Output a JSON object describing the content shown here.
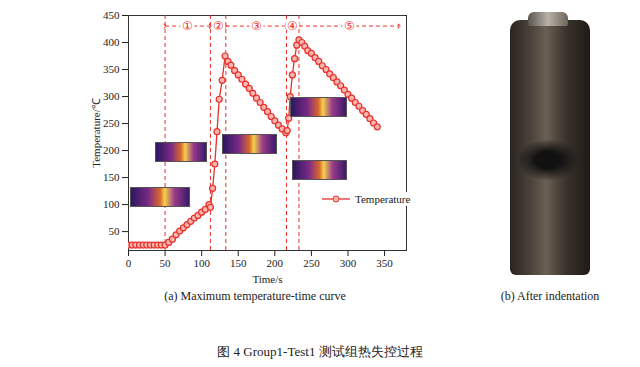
{
  "chart_data": {
    "type": "line",
    "title": "(a) Maximum temperature-time curve",
    "x_label": "Time/s",
    "y_label": "Temperature/℃",
    "xlim": [
      0,
      380
    ],
    "xticks": [
      0,
      50,
      100,
      150,
      200,
      250,
      300,
      350
    ],
    "ylim": [
      15,
      450
    ],
    "yticks": [
      50,
      100,
      150,
      200,
      250,
      300,
      350,
      400,
      450
    ],
    "x": [
      0,
      5,
      10,
      15,
      20,
      25,
      30,
      35,
      40,
      45,
      50,
      55,
      60,
      65,
      70,
      75,
      80,
      85,
      90,
      95,
      100,
      105,
      110,
      112,
      115,
      118,
      121,
      124,
      128,
      132,
      136,
      140,
      145,
      150,
      155,
      160,
      165,
      170,
      175,
      180,
      185,
      190,
      195,
      200,
      205,
      210,
      215,
      217,
      219,
      221,
      224,
      227,
      230,
      233,
      237,
      241,
      245,
      250,
      255,
      260,
      265,
      270,
      275,
      280,
      285,
      290,
      295,
      300,
      305,
      310,
      315,
      320,
      325,
      330,
      335,
      340
    ],
    "series": [
      {
        "name": "Temperature",
        "color": "#e8302a",
        "marker": "circle",
        "line_style": "solid",
        "values": [
          25,
          25,
          25,
          25,
          25,
          25,
          25,
          25,
          25,
          25,
          25,
          30,
          36,
          44,
          51,
          57,
          63,
          69,
          75,
          80,
          86,
          91,
          100,
          95,
          130,
          175,
          235,
          295,
          330,
          375,
          365,
          358,
          348,
          340,
          332,
          323,
          315,
          306,
          297,
          289,
          280,
          272,
          263,
          255,
          247,
          240,
          233,
          237,
          260,
          300,
          340,
          370,
          395,
          405,
          400,
          393,
          385,
          380,
          372,
          365,
          357,
          350,
          342,
          335,
          327,
          320,
          312,
          304,
          297,
          289,
          282,
          274,
          267,
          259,
          251,
          244
        ]
      }
    ],
    "legend": "right",
    "stages": [
      {
        "label": "①",
        "start": 50,
        "end": 112
      },
      {
        "label": "②",
        "start": 112,
        "end": 133
      },
      {
        "label": "③",
        "start": 133,
        "end": 216
      },
      {
        "label": "④",
        "start": 216,
        "end": 233
      },
      {
        "label": "⑤",
        "start": 233,
        "end": 370
      }
    ]
  },
  "panel_b": {
    "caption": "(b) After indentation"
  },
  "figure_caption": "图 4    Group1-Test1 测试组热失控过程"
}
